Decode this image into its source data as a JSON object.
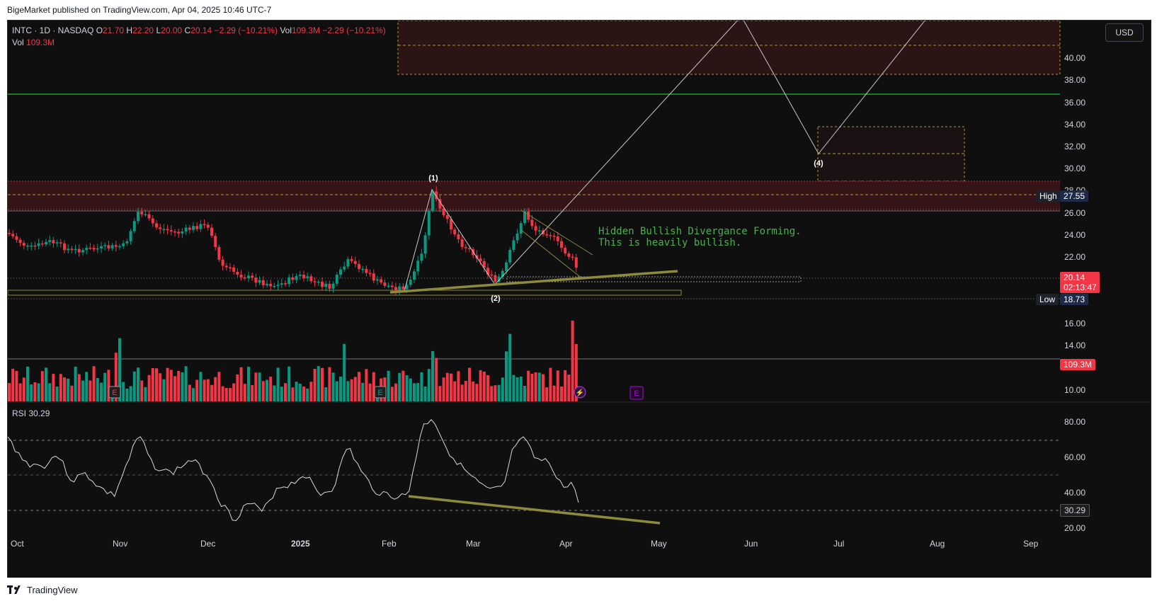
{
  "header": {
    "publisher_text": "BigeMarket published on TradingView.com, Apr 04, 2025 10:46 UTC-7"
  },
  "legend": {
    "symbol": "INTC · 1D · NASDAQ",
    "open_label": "O",
    "open": "21.70",
    "high_label": "H",
    "high": "22.20",
    "low_label": "L",
    "low": "20.00",
    "close_label": "C",
    "close": "20.14",
    "change": "−2.29 (−10.21%)",
    "vol_label": "Vol",
    "vol_value": "109.3M",
    "vol_change": "−2.29 (−10.21%)",
    "vol_row_label": "Vol",
    "vol_row_value": "109.3M"
  },
  "currency": "USD",
  "price_axis": [
    "40.00",
    "38.00",
    "36.00",
    "34.00",
    "32.00",
    "30.00",
    "28.00",
    "26.00",
    "24.00",
    "22.00",
    "16.00",
    "14.00",
    "10.00"
  ],
  "price_tags": {
    "high_label": "High",
    "high_value": "27.55",
    "last_price": "20.14",
    "countdown": "02:13:47",
    "low_label": "Low",
    "low_value": "18.73",
    "volume_value": "109.3M"
  },
  "rsi": {
    "label": "RSI",
    "value": "30.29",
    "axis": [
      "80.00",
      "60.00",
      "40.00",
      "20.00"
    ]
  },
  "time_axis": [
    "Oct",
    "Nov",
    "Dec",
    "2025",
    "Feb",
    "Mar",
    "Apr",
    "May",
    "Jun",
    "Jul",
    "Aug",
    "Sep"
  ],
  "wave_labels": [
    "(1)",
    "(2)",
    "(4)"
  ],
  "annotation": {
    "line1": "Hidden Bullish Divergance Forming.",
    "line2": "This is heavily bullish."
  },
  "event_marker": "E",
  "brand": "TradingView",
  "colors": {
    "up": "#089981",
    "down": "#f23645",
    "trendline": "#8d8a3a",
    "resistance_line": "#1e9c34",
    "annotation_text": "#4caf50"
  },
  "chart_data": {
    "type": "candlestick",
    "series": [
      {
        "name": "INTC",
        "ohlc_last": {
          "open": 21.7,
          "high": 22.2,
          "low": 20.0,
          "close": 20.14
        }
      },
      {
        "name": "Vol",
        "last_value": "109.3M"
      },
      {
        "name": "RSI",
        "last_value": 30.29
      }
    ],
    "marked_levels": {
      "high": 27.55,
      "low": 18.73
    }
  }
}
